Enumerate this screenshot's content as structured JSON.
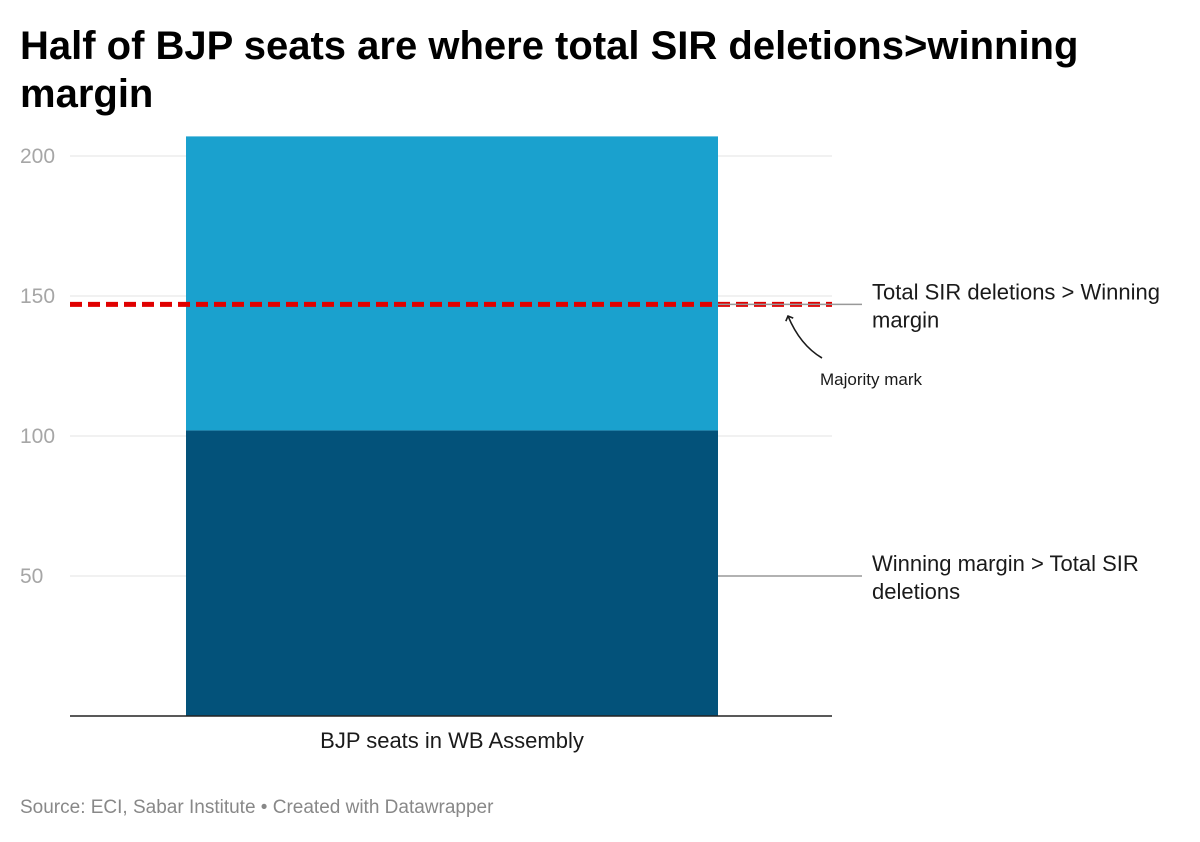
{
  "title": "Half of BJP seats are where total SIR deletions>winning margin",
  "footer": {
    "source": "Source: ECI, Sabar Institute",
    "separator": "•",
    "credit": "Created with Datawrapper"
  },
  "chart_data": {
    "type": "bar",
    "stacked": true,
    "categories": [
      "BJP seats in WB Assembly"
    ],
    "series": [
      {
        "name": "Winning margin > Total SIR deletions",
        "values": [
          102
        ],
        "color": "#03527a"
      },
      {
        "name": "Total SIR deletions > Winning margin",
        "values": [
          105
        ],
        "color": "#1aa1ce"
      }
    ],
    "segment_labels": [
      [
        "Winning margin > Total SIR",
        "deletions"
      ],
      [
        "Total SIR deletions > Winning",
        "margin"
      ]
    ],
    "reference_line": {
      "label": "Majority mark",
      "value": 147,
      "color": "#e00000",
      "style": "dashed"
    },
    "ylim": [
      0,
      210
    ],
    "yticks": [
      50,
      100,
      150,
      200
    ],
    "grid": true,
    "xlabel": "",
    "ylabel": ""
  }
}
